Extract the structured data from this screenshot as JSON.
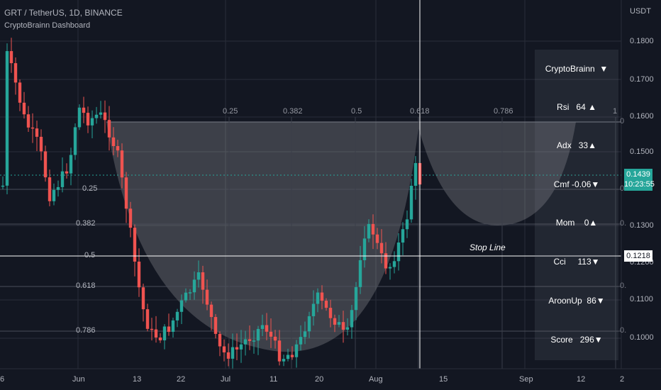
{
  "header": {
    "symbol_line": "GRT / TetherUS, 1D, BINANCE",
    "indicator_name": "CryptoBrainn Dashboard"
  },
  "price_axis": {
    "currency": "USDT",
    "labels": [
      "0.1800",
      "0.1700",
      "0.1600",
      "0.1500",
      "0.1300",
      "0.1200",
      "0.1100",
      "0.1000"
    ]
  },
  "time_axis": {
    "labels": [
      "6",
      "Jun",
      "13",
      "22",
      "Jul",
      "11",
      "20",
      "Aug",
      "15",
      "Sep",
      "12",
      "2"
    ]
  },
  "last_price": {
    "value": "0.1439",
    "countdown": "10:23:55",
    "color": "#26a69a"
  },
  "crosshair_price": "0.1218",
  "fib": {
    "left_labels": [
      "0.25",
      "0.382",
      "0.5",
      "0.618",
      "0.786"
    ],
    "top_labels": [
      "0.25",
      "0.382",
      "0.5",
      "0.618",
      "0.786",
      "1"
    ],
    "right_edge_labels": [
      "0",
      "0.",
      "0.",
      "0.",
      "0.",
      "0."
    ]
  },
  "stop_line_label": "Stop Line",
  "dashboard": {
    "rows": [
      {
        "label": "CryptoBrainn",
        "value": "▼"
      },
      {
        "label": "Rsi",
        "value": "64 ▲"
      },
      {
        "label": "Adx",
        "value": "33▲"
      },
      {
        "label": "Cmf",
        "value": "-0.06▼"
      },
      {
        "label": "Mom",
        "value": "0▲"
      },
      {
        "label": "Cci",
        "value": "113▼"
      },
      {
        "label": "AroonUp",
        "value": "86▼"
      },
      {
        "label": "Score",
        "value": "296▼"
      }
    ]
  },
  "colors": {
    "up": "#26a69a",
    "down": "#ef5350",
    "background": "#131722"
  }
}
